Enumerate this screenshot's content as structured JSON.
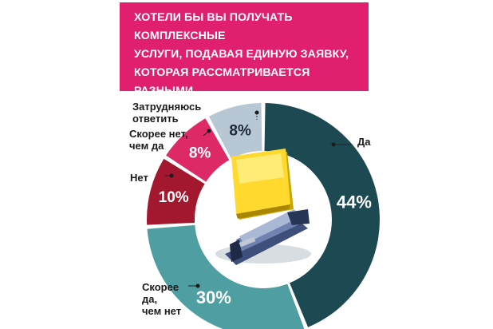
{
  "banner": {
    "title": "ХОТЕЛИ БЫ ВЫ ПОЛУЧАТЬ КОМПЛЕКСНЫЕ\nУСЛУГИ, ПОДАВАЯ ЕДИНУЮ ЗАЯВКУ,\nКОТОРАЯ РАССМАТРИВАЕТСЯ РАЗНЫМИ\nСТРУКТУРАМИ ОДНОВРЕМЕННО?",
    "color": "#e0206e"
  },
  "center_image": {
    "icons": [
      "sticky-note-icon",
      "stapler-icon"
    ]
  },
  "chart_data": {
    "type": "pie",
    "variant": "donut",
    "title": "ХОТЕЛИ БЫ ВЫ ПОЛУЧАТЬ КОМПЛЕКСНЫЕ УСЛУГИ, ПОДАВАЯ ЕДИНУЮ ЗАЯВКУ, КОТОРАЯ РАССМАТРИВАЕТСЯ РАЗНЫМИ СТРУКТУРАМИ ОДНОВРЕМЕННО?",
    "unit": "%",
    "slices": [
      {
        "label": "Да",
        "value": 44,
        "value_label": "44%",
        "color": "#1d4a52"
      },
      {
        "label": "Скорее\nда,\nчем нет",
        "value": 30,
        "value_label": "30%",
        "color": "#4f9fa2"
      },
      {
        "label": "Нет",
        "value": 10,
        "value_label": "10%",
        "color": "#a3182e"
      },
      {
        "label": "Скорее нет,\nчем да",
        "value": 8,
        "value_label": "8%",
        "color": "#dd2a66"
      },
      {
        "label": "Затрудняюсь\nответить",
        "value": 8,
        "value_label": "8%",
        "color": "#b8c7d4"
      }
    ]
  }
}
